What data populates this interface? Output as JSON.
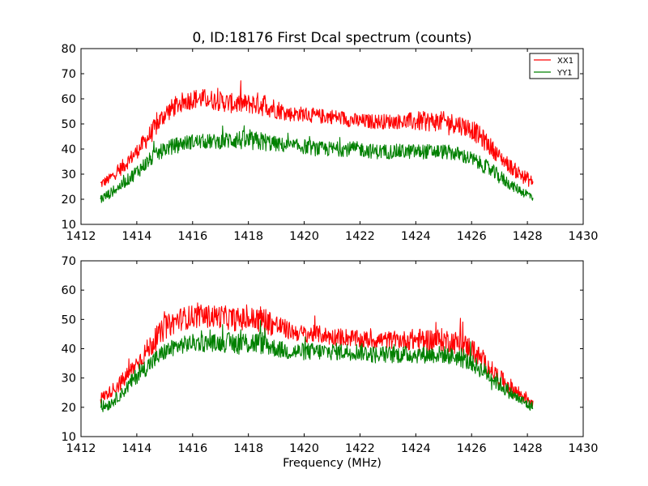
{
  "title": "0, ID:18176 First Dcal spectrum (counts)",
  "xlabel": "Frequency (MHz)",
  "colors": {
    "XX1": "#ff0000",
    "YY1": "#008000"
  },
  "chart_data": [
    {
      "type": "line",
      "title": "0, ID:18176 First Dcal spectrum (counts)",
      "xlabel": "",
      "ylabel": "",
      "xlim": [
        1412,
        1430
      ],
      "ylim": [
        10,
        80
      ],
      "xticks": [
        "1412",
        "1414",
        "1416",
        "1418",
        "1420",
        "1422",
        "1424",
        "1426",
        "1428",
        "1430"
      ],
      "yticks": [
        "10",
        "20",
        "30",
        "40",
        "50",
        "60",
        "70",
        "80"
      ],
      "legend": {
        "position": "top-right",
        "entries": [
          "XX1",
          "YY1"
        ]
      },
      "grid": false,
      "series": [
        {
          "name": "XX1",
          "color": "#ff0000",
          "x": [
            1412.7,
            1413.0,
            1413.5,
            1414.0,
            1414.5,
            1415.0,
            1415.5,
            1416.0,
            1416.5,
            1417.0,
            1417.5,
            1418.0,
            1418.5,
            1419.0,
            1419.5,
            1420.0,
            1420.5,
            1421.0,
            1421.5,
            1422.0,
            1422.5,
            1423.0,
            1423.5,
            1424.0,
            1424.5,
            1425.0,
            1425.5,
            1426.0,
            1426.5,
            1427.0,
            1427.5,
            1428.0,
            1428.2
          ],
          "y": [
            26,
            28,
            33,
            39,
            46,
            54,
            58,
            60,
            60,
            59,
            58,
            58,
            58,
            56,
            54,
            54,
            53,
            53,
            52,
            51,
            51,
            51,
            51,
            51,
            51,
            51,
            50,
            48,
            43,
            37,
            32,
            28,
            27
          ],
          "spread": [
            2,
            2,
            3,
            3,
            4,
            4,
            4,
            4,
            4,
            4,
            4,
            4,
            5,
            4,
            3,
            3,
            3,
            3,
            3,
            3,
            3,
            3,
            3,
            4,
            4,
            4,
            4,
            4,
            4,
            3,
            3,
            3,
            2
          ]
        },
        {
          "name": "YY1",
          "color": "#008000",
          "x": [
            1412.7,
            1413.0,
            1413.5,
            1414.0,
            1414.5,
            1415.0,
            1415.5,
            1416.0,
            1416.5,
            1417.0,
            1417.5,
            1418.0,
            1418.5,
            1419.0,
            1419.5,
            1420.0,
            1420.5,
            1421.0,
            1421.5,
            1422.0,
            1422.5,
            1423.0,
            1423.5,
            1424.0,
            1424.5,
            1425.0,
            1425.5,
            1426.0,
            1426.5,
            1427.0,
            1427.5,
            1428.0,
            1428.2
          ],
          "y": [
            20,
            22,
            26,
            31,
            36,
            40,
            42,
            43,
            43,
            43,
            44,
            43,
            43,
            42,
            41,
            41,
            40,
            40,
            40,
            40,
            39,
            39,
            39,
            39,
            39,
            39,
            38,
            36,
            33,
            29,
            25,
            22,
            21
          ],
          "spread": [
            2,
            2,
            2,
            3,
            3,
            3,
            3,
            3,
            3,
            3,
            4,
            4,
            4,
            3,
            3,
            3,
            3,
            3,
            3,
            3,
            3,
            3,
            3,
            3,
            3,
            3,
            3,
            3,
            3,
            3,
            2,
            2,
            2
          ]
        }
      ]
    },
    {
      "type": "line",
      "title": "",
      "xlabel": "Frequency (MHz)",
      "ylabel": "",
      "xlim": [
        1412,
        1430
      ],
      "ylim": [
        10,
        70
      ],
      "xticks": [
        "1412",
        "1414",
        "1416",
        "1418",
        "1420",
        "1422",
        "1424",
        "1426",
        "1428",
        "1430"
      ],
      "yticks": [
        "10",
        "20",
        "30",
        "40",
        "50",
        "60",
        "70"
      ],
      "grid": false,
      "series": [
        {
          "name": "XX1",
          "color": "#ff0000",
          "x": [
            1412.7,
            1413.0,
            1413.5,
            1414.0,
            1414.5,
            1415.0,
            1415.5,
            1416.0,
            1416.5,
            1417.0,
            1417.5,
            1418.0,
            1418.5,
            1419.0,
            1419.5,
            1420.0,
            1420.5,
            1421.0,
            1421.5,
            1422.0,
            1422.5,
            1423.0,
            1423.5,
            1424.0,
            1424.5,
            1425.0,
            1425.5,
            1426.0,
            1426.5,
            1427.0,
            1427.5,
            1428.0,
            1428.2
          ],
          "y": [
            23,
            25,
            29,
            35,
            41,
            47,
            50,
            51,
            51,
            51,
            50,
            50,
            50,
            48,
            46,
            45,
            45,
            44,
            44,
            43,
            43,
            43,
            43,
            43,
            43,
            43,
            42,
            40,
            35,
            30,
            26,
            23,
            22
          ],
          "spread": [
            2,
            2,
            3,
            3,
            4,
            4,
            4,
            4,
            4,
            4,
            4,
            4,
            5,
            4,
            3,
            3,
            3,
            3,
            3,
            3,
            3,
            3,
            3,
            4,
            4,
            4,
            4,
            4,
            3,
            3,
            3,
            2,
            2
          ]
        },
        {
          "name": "YY1",
          "color": "#008000",
          "x": [
            1412.7,
            1413.0,
            1413.5,
            1414.0,
            1414.5,
            1415.0,
            1415.5,
            1416.0,
            1416.5,
            1417.0,
            1417.5,
            1418.0,
            1418.5,
            1419.0,
            1419.5,
            1420.0,
            1420.5,
            1421.0,
            1421.5,
            1422.0,
            1422.5,
            1423.0,
            1423.5,
            1424.0,
            1424.5,
            1425.0,
            1425.5,
            1426.0,
            1426.5,
            1427.0,
            1427.5,
            1428.0,
            1428.2
          ],
          "y": [
            20,
            21,
            25,
            31,
            35,
            39,
            41,
            42,
            42,
            42,
            42,
            42,
            42,
            40,
            39,
            39,
            39,
            39,
            39,
            39,
            38,
            38,
            38,
            38,
            38,
            38,
            37,
            35,
            32,
            28,
            24,
            21,
            20
          ],
          "spread": [
            2,
            2,
            2,
            3,
            3,
            3,
            3,
            3,
            3,
            3,
            4,
            4,
            4,
            3,
            3,
            3,
            3,
            3,
            3,
            3,
            3,
            3,
            3,
            3,
            3,
            3,
            3,
            3,
            3,
            3,
            2,
            2,
            2
          ]
        }
      ]
    }
  ]
}
